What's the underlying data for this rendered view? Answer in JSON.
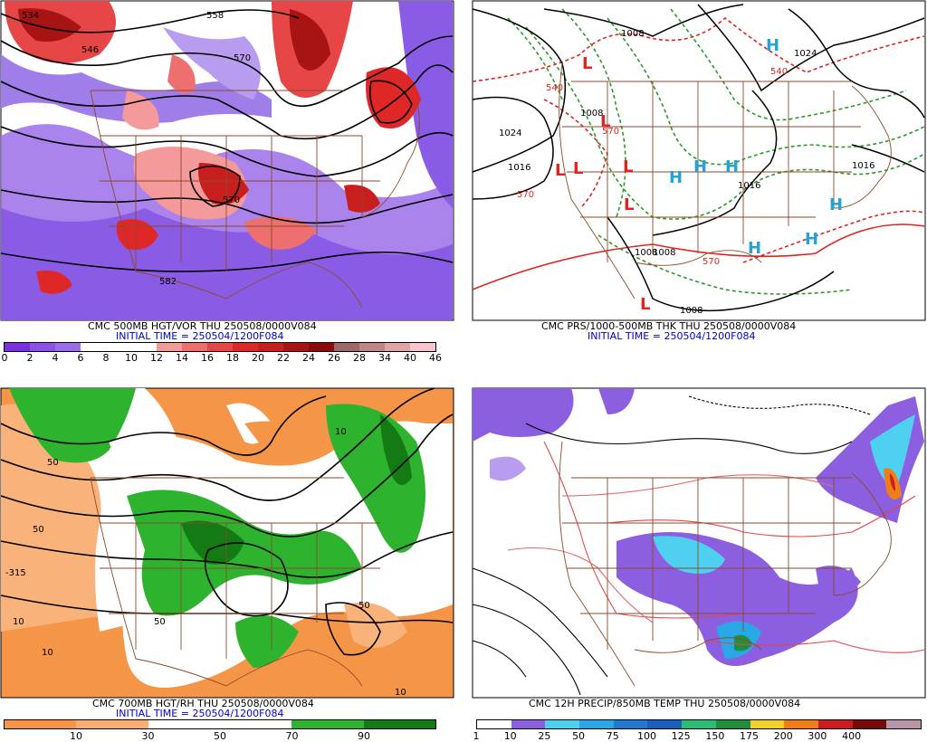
{
  "panels": [
    {
      "id": "p1",
      "title": "CMC 500MB HGT/VOR THU 250508/0000V084",
      "init": "INITIAL TIME = 250504/1200F084",
      "scale_labels": [
        "0",
        "2",
        "4",
        "6",
        "8",
        "10",
        "12",
        "14",
        "16",
        "18",
        "20",
        "22",
        "24",
        "26",
        "28",
        "34",
        "40",
        "46"
      ],
      "scale_colors": [
        "#7b2fe0",
        "#8c52e6",
        "#9b6de9",
        "#ffffff",
        "#ffffff",
        "#ffffff",
        "#f49a9a",
        "#ee6f6f",
        "#e74646",
        "#e02727",
        "#c81e1e",
        "#a81313",
        "#8b0a0a",
        "#9a6a6a",
        "#c08585",
        "#e0a5a5",
        "#f7c5d0"
      ],
      "contour_labels": [
        "534",
        "546",
        "558",
        "570",
        "582",
        "570"
      ]
    },
    {
      "id": "p2",
      "title": "CMC PRS/1000-500MB THK THU 250508/0000V084",
      "init": "INITIAL TIME = 250504/1200F084",
      "pressure_labels": [
        "1008",
        "1008",
        "1024",
        "1016",
        "1016",
        "1016",
        "1024",
        "1008",
        "1008",
        "1008"
      ],
      "thickness_labels": [
        "540",
        "570",
        "570",
        "570",
        "540"
      ],
      "highs": [
        "H",
        "H",
        "H",
        "H",
        "H",
        "H",
        "H"
      ],
      "lows": [
        "L",
        "L",
        "L",
        "L",
        "L",
        "L",
        "L"
      ]
    },
    {
      "id": "p3",
      "title": "CMC 700MB HGT/RH THU 250508/0000V084",
      "init": "INITIAL TIME = 250504/1200F084",
      "scale_labels": [
        "10",
        "30",
        "50",
        "70",
        "90"
      ],
      "contour_labels": [
        "-315",
        "50",
        "50",
        "10",
        "10",
        "10",
        "50",
        "50",
        "10"
      ]
    },
    {
      "id": "p4",
      "title": "CMC 12H PRECIP/850MB TEMP THU 250508/0000V084",
      "scale_labels": [
        "1",
        "10",
        "25",
        "50",
        "75",
        "100",
        "125",
        "150",
        "175",
        "200",
        "300",
        "400"
      ],
      "scale_colors": [
        "#ffffff",
        "#8c5fe0",
        "#4fd0f0",
        "#2aa7e6",
        "#1f78d1",
        "#1a5fbf",
        "#2bbd76",
        "#1e8f3e",
        "#f2d22a",
        "#f07c1a",
        "#c81e1e",
        "#7a0a0a",
        "#b896a8"
      ]
    }
  ],
  "colors": {
    "vor_purple": "#8a5ce6",
    "vor_red": "#e03a3a",
    "rh_orange": "#f59547",
    "rh_green": "#2db32d",
    "rh_dkgreen": "#147a14",
    "boundary": "#8b4a2b",
    "thick_red": "#e0241f",
    "thick_green": "#2a9a2a",
    "high_blue": "#22a4d6",
    "low_red": "#e0241f"
  }
}
